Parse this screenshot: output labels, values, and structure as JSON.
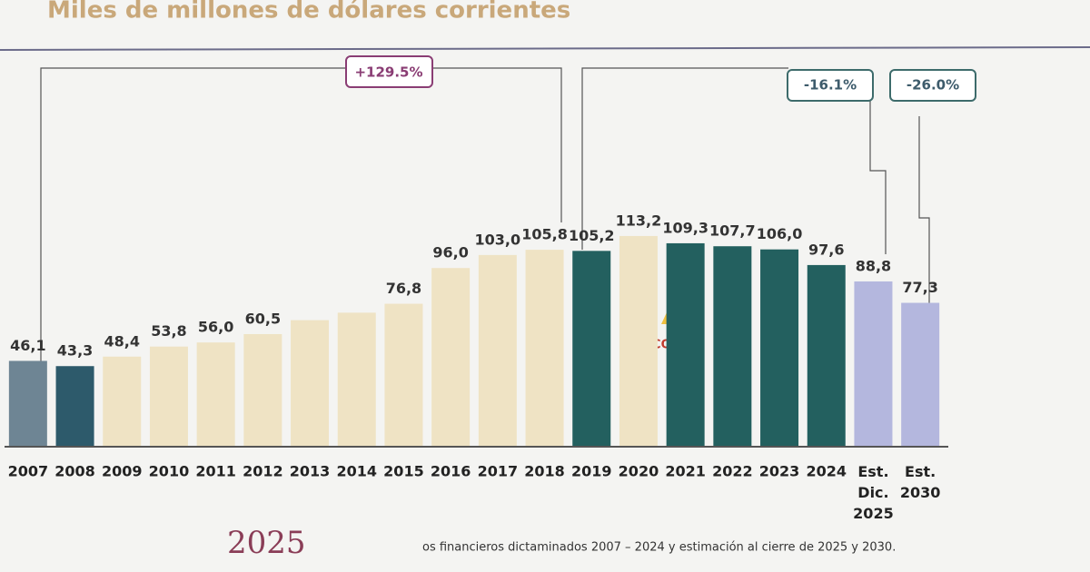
{
  "chart_data": {
    "type": "bar",
    "title": "Miles de millones de dólares corrientes",
    "categories": [
      "2007",
      "2008",
      "2009",
      "2010",
      "2011",
      "2012",
      "2013",
      "2014",
      "2015",
      "2016",
      "2017",
      "2018",
      "2019",
      "2020",
      "2021",
      "2022",
      "2023",
      "2024",
      "Est. Dic. 2025",
      "Est. 2030"
    ],
    "values": [
      46.1,
      43.3,
      48.4,
      53.8,
      56.0,
      60.5,
      68.0,
      72.0,
      76.8,
      96.0,
      103.0,
      105.8,
      105.2,
      113.2,
      109.3,
      107.7,
      106.0,
      97.6,
      88.8,
      77.3
    ],
    "value_labels": [
      "46,1",
      "43,3",
      "48,4",
      "53,8",
      "56,0",
      "60,5",
      null,
      null,
      "76,8",
      "96,0",
      "103,0",
      "105,8",
      "105,2",
      "113,2",
      "109,3",
      "107,7",
      "106,0",
      "97,6",
      "88,8",
      "77,3"
    ],
    "colors": [
      "#6e8594",
      "#2d5a6b",
      "#efe3c4",
      "#efe3c4",
      "#efe3c4",
      "#efe3c4",
      "#efe3c4",
      "#efe3c4",
      "#efe3c4",
      "#efe3c4",
      "#efe3c4",
      "#efe3c4",
      "#23605f",
      "#efe3c4",
      "#23605f",
      "#23605f",
      "#23605f",
      "#23605f",
      "#b4b7de",
      "#b4b7de"
    ],
    "ylim": [
      0,
      120
    ],
    "annotations": [
      "+129.5%",
      "-16.1%",
      "-26.0%"
    ],
    "note": "COVID",
    "footnote": "os financieros dictaminados 2007 – 2024 y estimación al cierre de 2025 y 2030.",
    "logo": "2025"
  }
}
